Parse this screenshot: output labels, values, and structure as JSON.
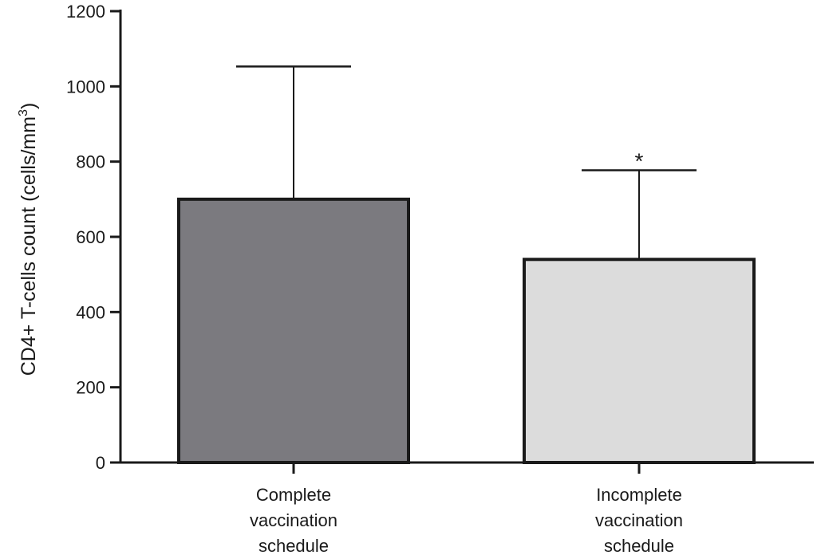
{
  "chart_data": {
    "type": "bar",
    "categories": [
      [
        "Complete",
        "vaccination",
        "schedule"
      ],
      [
        "Incomplete",
        "vaccination",
        "schedule"
      ]
    ],
    "values": [
      700,
      540
    ],
    "error_upper": [
      1053,
      777
    ],
    "significance": [
      "",
      "*"
    ],
    "bar_colors": [
      "#7b7a7f",
      "#dcdcdc"
    ],
    "ylabel_main": "CD4+ T-cells count (cells/mm",
    "ylabel_sup": "3",
    "ylabel_end": ")",
    "ylim": [
      0,
      1200
    ],
    "yticks": [
      "0",
      "200",
      "400",
      "600",
      "800",
      "1000",
      "1200"
    ],
    "grid": false
  }
}
